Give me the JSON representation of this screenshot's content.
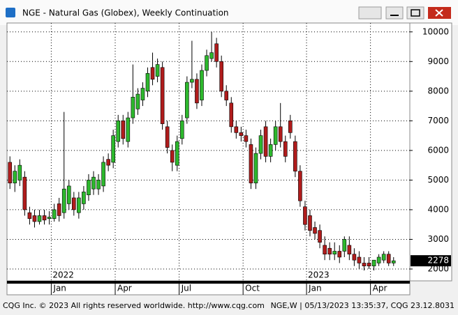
{
  "window_title": "NGE - Natural Gas (Globex), Weekly Continuation",
  "chart_data": {
    "type": "candlestick",
    "open": [
      5600,
      4900,
      5000,
      5100,
      3900,
      3800,
      3600,
      3800,
      3700,
      3700,
      4200,
      3900,
      4200,
      4400,
      3900,
      4200,
      4500,
      4700,
      4700,
      4800,
      5700,
      5600,
      6300,
      7000,
      6300,
      7100,
      7400,
      7700,
      8000,
      8800,
      8500,
      8800,
      6800,
      6000,
      5500,
      6400,
      7100,
      8300,
      8400,
      7700,
      8700,
      9100,
      9600,
      9000,
      8000,
      7600,
      6800,
      6600,
      6500,
      6200,
      4900,
      5900,
      6800,
      5800,
      6200,
      6800,
      6300,
      7000,
      6300,
      5300,
      4100,
      3800,
      3400,
      3300,
      2800,
      2700,
      2500,
      2600,
      2600,
      2800,
      2500,
      2400,
      2200,
      2200,
      2100,
      2200,
      2300,
      2500,
      2200
    ],
    "high": [
      5800,
      5500,
      5700,
      5300,
      4100,
      4000,
      4000,
      4000,
      3950,
      4200,
      4400,
      7300,
      5000,
      4600,
      4600,
      4800,
      5200,
      5300,
      5200,
      5800,
      5900,
      6700,
      7200,
      7200,
      7300,
      8900,
      8100,
      8300,
      8800,
      9300,
      9100,
      9000,
      7000,
      6200,
      6500,
      7200,
      8500,
      9700,
      8600,
      8900,
      9400,
      10000,
      9800,
      9200,
      8200,
      7800,
      7000,
      6800,
      6700,
      6400,
      6100,
      6700,
      7000,
      6400,
      7000,
      7600,
      6500,
      7200,
      6500,
      5500,
      4300,
      4000,
      3600,
      3500,
      3100,
      2900,
      2900,
      2800,
      3100,
      3100,
      2700,
      2600,
      2400,
      2400,
      2300,
      2500,
      2600,
      2600,
      2400
    ],
    "low": [
      4700,
      4600,
      4800,
      3800,
      3500,
      3400,
      3500,
      3500,
      3500,
      3600,
      3600,
      3700,
      4000,
      3800,
      3700,
      4000,
      4300,
      4500,
      4500,
      4600,
      5300,
      5400,
      6100,
      6200,
      6100,
      6900,
      7200,
      7500,
      7800,
      8200,
      8300,
      6700,
      5900,
      5300,
      5300,
      6200,
      6900,
      8100,
      7400,
      7500,
      8500,
      9000,
      8800,
      7800,
      7500,
      6600,
      6400,
      6300,
      6100,
      4700,
      4700,
      5700,
      5600,
      5600,
      6000,
      6100,
      5600,
      6400,
      5100,
      4100,
      3300,
      3100,
      3000,
      2700,
      2300,
      2300,
      2300,
      2200,
      2400,
      2300,
      2100,
      2000,
      1950,
      2000,
      1950,
      2100,
      2200,
      2100,
      2100
    ],
    "close": [
      4900,
      5300,
      5500,
      4000,
      3700,
      3600,
      3800,
      3650,
      3750,
      4000,
      3800,
      4700,
      4800,
      4000,
      4400,
      4600,
      5000,
      5100,
      5000,
      5600,
      5500,
      6500,
      7000,
      6400,
      7100,
      7800,
      7900,
      8100,
      8600,
      8400,
      8900,
      6900,
      6100,
      5600,
      6300,
      7000,
      8300,
      8400,
      7600,
      8700,
      9200,
      9300,
      9000,
      8000,
      7700,
      6800,
      6600,
      6500,
      6300,
      4900,
      5900,
      6500,
      5800,
      6200,
      6800,
      6300,
      5800,
      6600,
      5300,
      4300,
      3500,
      3300,
      3200,
      2900,
      2500,
      2500,
      2600,
      2400,
      3000,
      2500,
      2300,
      2200,
      2100,
      2100,
      2300,
      2400,
      2500,
      2200,
      2278
    ],
    "up_color": "#2db82d",
    "down_color": "#b01c1c",
    "ylim": [
      1600,
      10300
    ],
    "yticks": [
      2000,
      3000,
      4000,
      5000,
      6000,
      7000,
      8000,
      9000,
      10000
    ],
    "xlim": [
      -0.6,
      81.3
    ],
    "xticks": [
      {
        "value": 8.4,
        "label": "Jan"
      },
      {
        "value": 21.4,
        "label": "Apr"
      },
      {
        "value": 34.4,
        "label": "Jul"
      },
      {
        "value": 47.4,
        "label": "Oct"
      },
      {
        "value": 60.3,
        "label": "Jan"
      },
      {
        "value": 73.3,
        "label": "Apr"
      }
    ],
    "year_labels": [
      {
        "value": 8.4,
        "label": "2022"
      },
      {
        "value": 60.3,
        "label": "2023"
      }
    ],
    "grid": true
  },
  "footer": {
    "left": "CQG Inc. © 2023 All rights reserved worldwide. http://www.cqg.com",
    "right": "NGE,W | 05/13/2023 13:35:37, CQG 23.12.8031"
  }
}
